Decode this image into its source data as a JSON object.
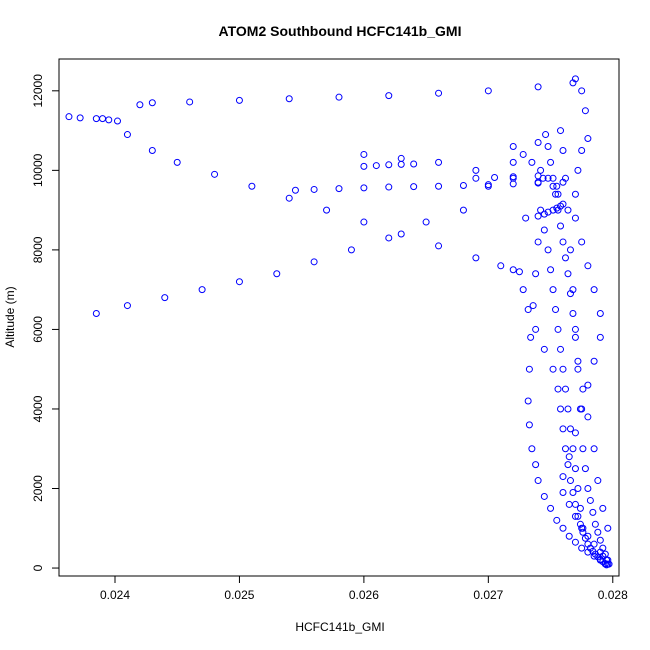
{
  "chart_data": {
    "type": "scatter",
    "title": "ATOM2 Southbound HCFC141b_GMI",
    "xlabel": "HCFC141b_GMI",
    "ylabel": "Altitude (m)",
    "xlim": [
      0.02355,
      0.02805
    ],
    "ylim": [
      -200,
      12800
    ],
    "x_ticks": [
      0.024,
      0.025,
      0.026,
      0.027,
      0.028
    ],
    "x_tick_labels": [
      "0.024",
      "0.025",
      "0.026",
      "0.027",
      "0.028"
    ],
    "y_ticks": [
      0,
      2000,
      4000,
      6000,
      8000,
      10000,
      12000
    ],
    "y_tick_labels": [
      "0",
      "2000",
      "4000",
      "6000",
      "8000",
      "10000",
      "12000"
    ],
    "grid": false,
    "marker": "open-circle",
    "series": [
      {
        "color": "#0000ff",
        "x": [
          0.02363,
          0.02372,
          0.02385,
          0.02395,
          0.02402,
          0.0242,
          0.0243,
          0.0246,
          0.025,
          0.0254,
          0.0258,
          0.0262,
          0.0266,
          0.027,
          0.0274,
          0.02768,
          0.0277,
          0.02775,
          0.02778,
          0.0278,
          0.02775,
          0.02772,
          0.0277,
          0.0277,
          0.02775,
          0.0278,
          0.02785,
          0.0279,
          0.0279,
          0.02785,
          0.0278,
          0.02775,
          0.0277,
          0.02765,
          0.0276,
          0.0276,
          0.02765,
          0.0277,
          0.02775,
          0.0278,
          0.02785,
          0.0279,
          0.02792,
          0.02795,
          0.02796,
          0.02796,
          0.02792,
          0.02788,
          0.02785,
          0.0278,
          0.02776,
          0.02772,
          0.0277,
          0.02768,
          0.02766,
          0.02764,
          0.02762,
          0.0276,
          0.02758,
          0.02756,
          0.02754,
          0.02752,
          0.0275,
          0.02748,
          0.02746,
          0.02744,
          0.02742,
          0.0274,
          0.02738,
          0.02736,
          0.02734,
          0.02733,
          0.02732,
          0.02733,
          0.02735,
          0.02738,
          0.0274,
          0.02745,
          0.0275,
          0.02755,
          0.0276,
          0.02765,
          0.0277,
          0.02775,
          0.0278,
          0.02785,
          0.0279,
          0.02794,
          0.0274,
          0.0272,
          0.027,
          0.0268,
          0.0265,
          0.0262,
          0.0259,
          0.0256,
          0.0253,
          0.025,
          0.0247,
          0.0244,
          0.0241,
          0.02385,
          0.0239,
          0.0241,
          0.0243,
          0.0245,
          0.0248,
          0.0251,
          0.0254,
          0.0257,
          0.026,
          0.0263,
          0.0266,
          0.0269,
          0.0271,
          0.0272,
          0.02725,
          0.02728,
          0.02732,
          0.02738,
          0.02745,
          0.02752,
          0.02756,
          0.02758,
          0.0276,
          0.02762,
          0.02764,
          0.02766,
          0.02768,
          0.0277,
          0.02772,
          0.02774,
          0.02776,
          0.02778,
          0.0278,
          0.02782,
          0.02784,
          0.02786,
          0.02788,
          0.0279,
          0.02792,
          0.02794,
          0.02795,
          0.026,
          0.0261,
          0.0262,
          0.0263,
          0.0264,
          0.02545,
          0.0256,
          0.0258,
          0.026,
          0.0262,
          0.0264,
          0.0266,
          0.0268,
          0.027,
          0.0272,
          0.0274,
          0.0276,
          0.026,
          0.0263,
          0.0266,
          0.0269,
          0.0272,
          0.0274,
          0.02755,
          0.0269,
          0.02705,
          0.0272,
          0.0274,
          0.0273,
          0.0274,
          0.02745,
          0.02748,
          0.02752,
          0.02755,
          0.02758,
          0.0276,
          0.02758,
          0.0276,
          0.02762,
          0.02764,
          0.02766,
          0.02768,
          0.0277,
          0.02772,
          0.02774,
          0.02776,
          0.02778,
          0.0278,
          0.02782,
          0.02784,
          0.02786,
          0.02788,
          0.0279,
          0.02792,
          0.02794,
          0.02796,
          0.02797,
          0.0272,
          0.02728,
          0.02735,
          0.02742,
          0.02748,
          0.02752,
          0.02756,
          0.02745,
          0.02748,
          0.0275,
          0.02752,
          0.02754,
          0.02756,
          0.02758,
          0.0276,
          0.02762,
          0.02764,
          0.02766,
          0.02768,
          0.0277,
          0.02772,
          0.02774,
          0.02776
        ],
        "y": [
          11350,
          11320,
          11300,
          11270,
          11240,
          11650,
          11700,
          11720,
          11760,
          11800,
          11840,
          11880,
          11940,
          12000,
          12100,
          12200,
          12300,
          12000,
          11500,
          10800,
          10500,
          10000,
          9400,
          8800,
          8200,
          7600,
          7000,
          6400,
          5800,
          5200,
          4600,
          4000,
          3400,
          2800,
          2300,
          1900,
          1600,
          1300,
          1000,
          800,
          600,
          400,
          300,
          200,
          100,
          1000,
          1500,
          2200,
          3000,
          3800,
          4500,
          5200,
          5800,
          6400,
          6900,
          7400,
          7800,
          8200,
          8600,
          9000,
          9400,
          9800,
          10200,
          10600,
          10900,
          9800,
          9000,
          8200,
          7400,
          6600,
          5800,
          5000,
          4200,
          3600,
          3000,
          2600,
          2200,
          1800,
          1500,
          1200,
          1000,
          800,
          650,
          500,
          400,
          300,
          200,
          100,
          10700,
          10200,
          9600,
          9000,
          8700,
          8300,
          8000,
          7700,
          7400,
          7200,
          7000,
          6800,
          6600,
          6400,
          11300,
          10900,
          10500,
          10200,
          9900,
          9600,
          9300,
          9000,
          8700,
          8400,
          8100,
          7800,
          7600,
          7500,
          7450,
          7000,
          6500,
          6000,
          5500,
          5000,
          4500,
          4000,
          3500,
          3000,
          2600,
          2200,
          1900,
          1600,
          1300,
          1100,
          900,
          750,
          600,
          500,
          420,
          350,
          280,
          220,
          160,
          110,
          80,
          10100,
          10120,
          10140,
          10150,
          10160,
          9500,
          9520,
          9540,
          9560,
          9580,
          9590,
          9600,
          9620,
          9640,
          9660,
          9680,
          9700,
          10400,
          10300,
          10200,
          10000,
          9800,
          9700,
          9600,
          9800,
          9820,
          9840,
          9860,
          8800,
          8850,
          8900,
          8950,
          9000,
          9050,
          9100,
          9150,
          11000,
          10500,
          9800,
          9000,
          8000,
          7000,
          6000,
          5000,
          4000,
          3000,
          2500,
          2000,
          1700,
          1400,
          1100,
          900,
          700,
          500,
          350,
          200,
          100,
          10600,
          10400,
          10200,
          10000,
          9800,
          9600,
          9400,
          8500,
          8000,
          7500,
          7000,
          6500,
          6000,
          5500,
          5000,
          4500,
          4000,
          3500,
          3000,
          2500,
          2000,
          1500,
          1000
        ]
      }
    ]
  }
}
